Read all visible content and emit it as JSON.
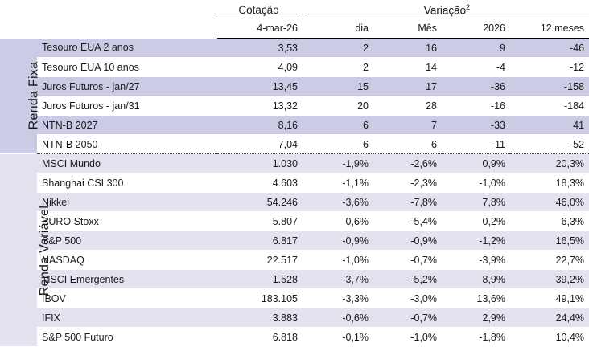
{
  "header": {
    "cotacao": "Cotação",
    "variacao": "Variação",
    "variacao_sup": "2",
    "date": "4-mar-26",
    "dia": "dia",
    "mes": "Mês",
    "ano": "2026",
    "doze": "12 meses"
  },
  "sections": {
    "renda_fixa": "Renda Fixa",
    "renda_variavel": "Renda Variável"
  },
  "renda_fixa": [
    {
      "name": "Tesouro EUA 2 anos",
      "cot": "3,53",
      "dia": "2",
      "mes": "16",
      "ano": "9",
      "doze": "-46"
    },
    {
      "name": "Tesouro EUA 10 anos",
      "cot": "4,09",
      "dia": "2",
      "mes": "14",
      "ano": "-4",
      "doze": "-12"
    },
    {
      "name": "Juros Futuros - jan/27",
      "cot": "13,45",
      "dia": "15",
      "mes": "17",
      "ano": "-36",
      "doze": "-158"
    },
    {
      "name": "Juros Futuros - jan/31",
      "cot": "13,32",
      "dia": "20",
      "mes": "28",
      "ano": "-16",
      "doze": "-184"
    },
    {
      "name": "NTN-B 2027",
      "cot": "8,16",
      "dia": "6",
      "mes": "7",
      "ano": "-33",
      "doze": "41"
    },
    {
      "name": "NTN-B 2050",
      "cot": "7,04",
      "dia": "6",
      "mes": "6",
      "ano": "-11",
      "doze": "-52"
    }
  ],
  "renda_variavel": [
    {
      "name": "MSCI Mundo",
      "cot": "1.030",
      "dia": "-1,9%",
      "mes": "-2,6%",
      "ano": "0,9%",
      "doze": "20,3%"
    },
    {
      "name": "Shanghai CSI 300",
      "cot": "4.603",
      "dia": "-1,1%",
      "mes": "-2,3%",
      "ano": "-1,0%",
      "doze": "18,3%"
    },
    {
      "name": "Nikkei",
      "cot": "54.246",
      "dia": "-3,6%",
      "mes": "-7,8%",
      "ano": "7,8%",
      "doze": "46,0%"
    },
    {
      "name": "EURO Stoxx",
      "cot": "5.807",
      "dia": "0,6%",
      "mes": "-5,4%",
      "ano": "0,2%",
      "doze": "6,3%"
    },
    {
      "name": "S&P 500",
      "cot": "6.817",
      "dia": "-0,9%",
      "mes": "-0,9%",
      "ano": "-1,2%",
      "doze": "16,5%"
    },
    {
      "name": "NASDAQ",
      "cot": "22.517",
      "dia": "-1,0%",
      "mes": "-0,7%",
      "ano": "-3,9%",
      "doze": "22,7%"
    },
    {
      "name": "MSCI Emergentes",
      "cot": "1.528",
      "dia": "-3,7%",
      "mes": "-5,2%",
      "ano": "8,9%",
      "doze": "39,2%"
    },
    {
      "name": "IBOV",
      "cot": "183.105",
      "dia": "-3,3%",
      "mes": "-3,0%",
      "ano": "13,6%",
      "doze": "49,1%"
    },
    {
      "name": "IFIX",
      "cot": "3.883",
      "dia": "-0,6%",
      "mes": "-0,7%",
      "ano": "2,9%",
      "doze": "24,4%"
    },
    {
      "name": "S&P 500 Futuro",
      "cot": "6.818",
      "dia": "-0,1%",
      "mes": "-1,0%",
      "ano": "-1,8%",
      "doze": "10,4%"
    }
  ]
}
